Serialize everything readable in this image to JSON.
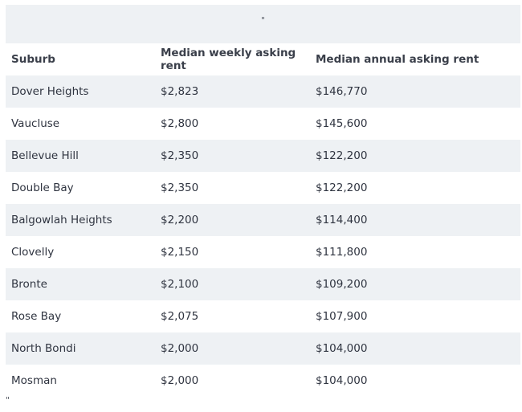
{
  "caption": "\"",
  "headers": {
    "suburb": "Suburb",
    "weekly": "Median weekly asking rent",
    "annual": "Median annual asking rent"
  },
  "rows": [
    {
      "suburb": "Dover Heights",
      "weekly": "$2,823",
      "annual": "$146,770"
    },
    {
      "suburb": "Vaucluse",
      "weekly": "$2,800",
      "annual": "$145,600"
    },
    {
      "suburb": "Bellevue Hill",
      "weekly": "$2,350",
      "annual": "$122,200"
    },
    {
      "suburb": "Double Bay",
      "weekly": "$2,350",
      "annual": "$122,200"
    },
    {
      "suburb": "Balgowlah Heights",
      "weekly": "$2,200",
      "annual": "$114,400"
    },
    {
      "suburb": "Clovelly",
      "weekly": "$2,150",
      "annual": "$111,800"
    },
    {
      "suburb": "Bronte",
      "weekly": "$2,100",
      "annual": "$109,200"
    },
    {
      "suburb": "Rose Bay",
      "weekly": "$2,075",
      "annual": "$107,900"
    },
    {
      "suburb": "North Bondi",
      "weekly": "$2,000",
      "annual": "$104,000"
    },
    {
      "suburb": "Mosman",
      "weekly": "$2,000",
      "annual": "$104,000"
    }
  ],
  "footer": "\""
}
